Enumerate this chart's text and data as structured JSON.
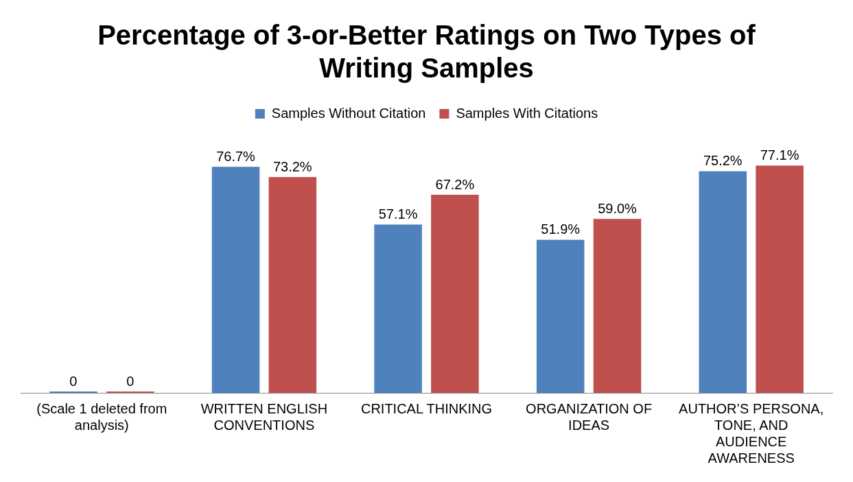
{
  "chart_data": {
    "type": "bar",
    "title": "Percentage of 3-or-Better Ratings on Two Types of Writing Samples",
    "categories": [
      "(Scale 1 deleted from analysis)",
      "WRITTEN ENGLISH CONVENTIONS",
      "CRITICAL THINKING",
      "ORGANIZATION OF IDEAS",
      "AUTHOR’S PERSONA, TONE, AND AUDIENCE AWARENESS"
    ],
    "series": [
      {
        "name": "Samples Without Citation",
        "color": "#4f81bd",
        "values": [
          0,
          76.7,
          57.1,
          51.9,
          75.2
        ],
        "value_labels": [
          "0",
          "76.7%",
          "57.1%",
          "51.9%",
          "75.2%"
        ]
      },
      {
        "name": "Samples With Citations",
        "color": "#c0504d",
        "values": [
          0,
          73.2,
          67.2,
          59.0,
          77.1
        ],
        "value_labels": [
          "0",
          "73.2%",
          "67.2%",
          "59.0%",
          "77.1%"
        ]
      }
    ],
    "legend": "top",
    "grid": false
  }
}
